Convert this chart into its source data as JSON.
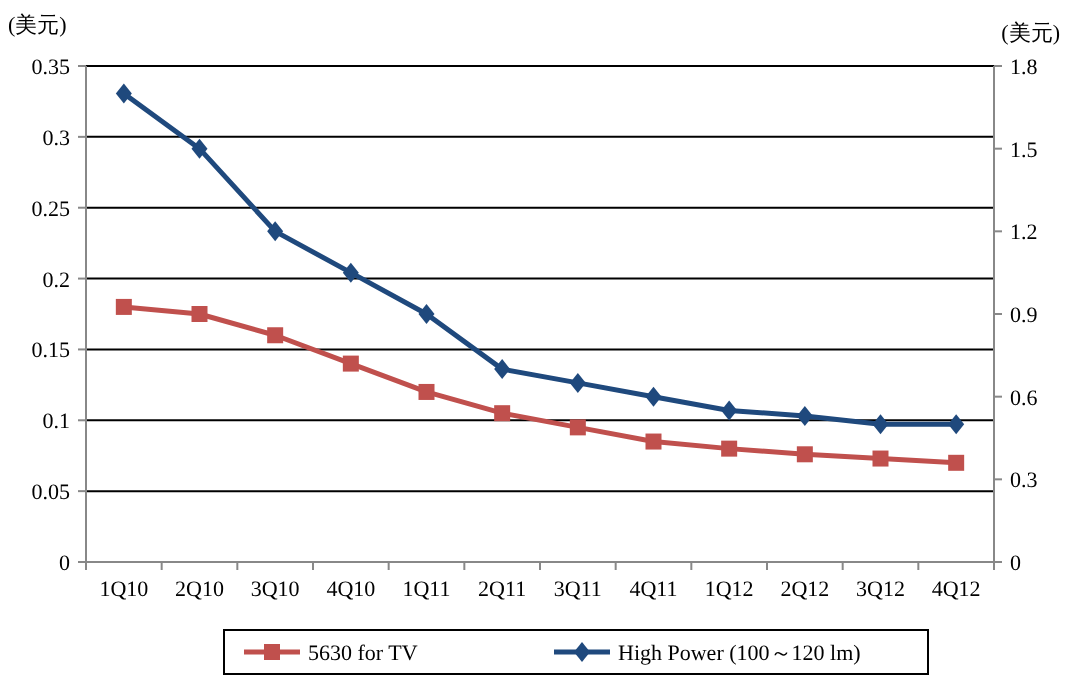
{
  "chart_data": {
    "type": "line",
    "ylabel": "(美元)",
    "y2label": "(美元)",
    "categories": [
      "1Q10",
      "2Q10",
      "3Q10",
      "4Q10",
      "1Q11",
      "2Q11",
      "3Q11",
      "4Q11",
      "1Q12",
      "2Q12",
      "3Q12",
      "4Q12"
    ],
    "series": [
      {
        "name": "5630 for TV",
        "color": "#c0504d",
        "marker": "square",
        "values": [
          0.18,
          0.175,
          0.16,
          0.14,
          0.12,
          0.105,
          0.095,
          0.085,
          0.08,
          0.076,
          0.073,
          0.07
        ]
      },
      {
        "name": "High Power (100～120 lm)",
        "color": "#1f497d",
        "marker": "diamond",
        "axis": "y2",
        "values": [
          1.7,
          1.5,
          1.2,
          1.05,
          0.9,
          0.7,
          0.65,
          0.6,
          0.55,
          0.53,
          0.5,
          0.5
        ]
      }
    ],
    "ylim": [
      0,
      0.35
    ],
    "yticks": [
      0,
      0.05,
      0.1,
      0.15,
      0.2,
      0.25,
      0.3,
      0.35
    ],
    "y2lim": [
      0,
      1.8
    ],
    "y2ticks": [
      0,
      0.3,
      0.6,
      0.9,
      1.2,
      1.5,
      1.8
    ],
    "grid": "y",
    "legend": "bottom",
    "line_style": "solid"
  }
}
